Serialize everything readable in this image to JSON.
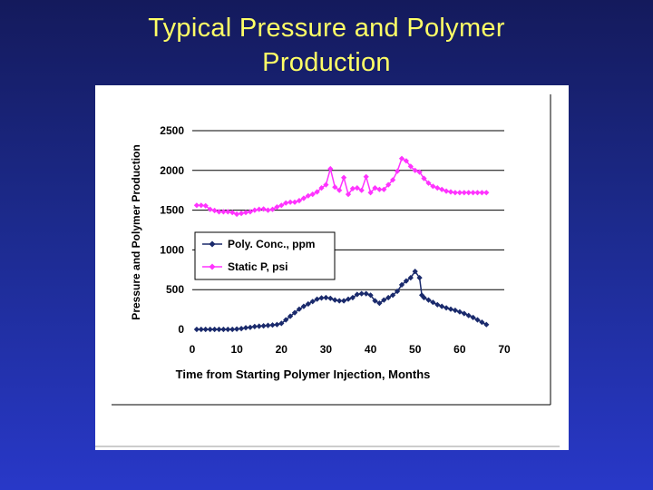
{
  "slide": {
    "title_line1": "Typical Pressure and Polymer",
    "title_line2": "Production"
  },
  "colors": {
    "title": "#ffff66",
    "poly_series": "#1a2a6c",
    "static_series": "#ff33ff",
    "gridline": "#000000"
  },
  "chart_data": {
    "type": "line",
    "title": "",
    "xlabel": "Time from Starting Polymer Injection, Months",
    "ylabel": "Pressure and Polymer Production",
    "xlim": [
      0,
      70
    ],
    "ylim": [
      0,
      2500
    ],
    "xticks": [
      0,
      10,
      20,
      30,
      40,
      50,
      60,
      70
    ],
    "yticks": [
      0,
      500,
      1000,
      1500,
      2000,
      2500
    ],
    "grid": "horizontal",
    "legend_position": "left",
    "series": [
      {
        "name": "Poly. Conc., ppm",
        "color": "#1a2a6c",
        "marker": "diamond",
        "points": [
          [
            1,
            0
          ],
          [
            2,
            0
          ],
          [
            3,
            0
          ],
          [
            4,
            0
          ],
          [
            5,
            0
          ],
          [
            6,
            0
          ],
          [
            7,
            0
          ],
          [
            8,
            0
          ],
          [
            9,
            0
          ],
          [
            10,
            5
          ],
          [
            11,
            10
          ],
          [
            12,
            20
          ],
          [
            13,
            25
          ],
          [
            14,
            35
          ],
          [
            15,
            40
          ],
          [
            16,
            45
          ],
          [
            17,
            50
          ],
          [
            18,
            55
          ],
          [
            19,
            60
          ],
          [
            20,
            75
          ],
          [
            21,
            120
          ],
          [
            22,
            165
          ],
          [
            23,
            210
          ],
          [
            24,
            255
          ],
          [
            25,
            290
          ],
          [
            26,
            320
          ],
          [
            27,
            350
          ],
          [
            28,
            380
          ],
          [
            29,
            395
          ],
          [
            30,
            400
          ],
          [
            31,
            390
          ],
          [
            32,
            370
          ],
          [
            33,
            360
          ],
          [
            34,
            360
          ],
          [
            35,
            380
          ],
          [
            36,
            400
          ],
          [
            37,
            440
          ],
          [
            38,
            450
          ],
          [
            39,
            450
          ],
          [
            40,
            430
          ],
          [
            41,
            360
          ],
          [
            42,
            330
          ],
          [
            43,
            370
          ],
          [
            44,
            400
          ],
          [
            45,
            430
          ],
          [
            46,
            480
          ],
          [
            47,
            560
          ],
          [
            48,
            610
          ],
          [
            49,
            650
          ],
          [
            50,
            730
          ],
          [
            51,
            650
          ],
          [
            51.5,
            430
          ],
          [
            52,
            400
          ],
          [
            53,
            370
          ],
          [
            54,
            340
          ],
          [
            55,
            310
          ],
          [
            56,
            290
          ],
          [
            57,
            270
          ],
          [
            58,
            255
          ],
          [
            59,
            240
          ],
          [
            60,
            220
          ],
          [
            61,
            200
          ],
          [
            62,
            175
          ],
          [
            63,
            150
          ],
          [
            64,
            120
          ],
          [
            65,
            90
          ],
          [
            66,
            60
          ]
        ]
      },
      {
        "name": "Static P, psi",
        "color": "#ff33ff",
        "marker": "diamond",
        "points": [
          [
            1,
            1560
          ],
          [
            2,
            1560
          ],
          [
            3,
            1555
          ],
          [
            4,
            1510
          ],
          [
            5,
            1495
          ],
          [
            6,
            1480
          ],
          [
            7,
            1480
          ],
          [
            8,
            1480
          ],
          [
            9,
            1470
          ],
          [
            10,
            1450
          ],
          [
            11,
            1460
          ],
          [
            12,
            1470
          ],
          [
            13,
            1480
          ],
          [
            14,
            1500
          ],
          [
            15,
            1510
          ],
          [
            16,
            1515
          ],
          [
            17,
            1500
          ],
          [
            18,
            1510
          ],
          [
            19,
            1540
          ],
          [
            20,
            1560
          ],
          [
            21,
            1590
          ],
          [
            22,
            1600
          ],
          [
            23,
            1600
          ],
          [
            24,
            1620
          ],
          [
            25,
            1650
          ],
          [
            26,
            1680
          ],
          [
            27,
            1700
          ],
          [
            28,
            1730
          ],
          [
            29,
            1780
          ],
          [
            30,
            1820
          ],
          [
            31,
            2020
          ],
          [
            32,
            1790
          ],
          [
            33,
            1750
          ],
          [
            34,
            1910
          ],
          [
            35,
            1700
          ],
          [
            36,
            1770
          ],
          [
            37,
            1780
          ],
          [
            38,
            1750
          ],
          [
            39,
            1920
          ],
          [
            40,
            1720
          ],
          [
            41,
            1780
          ],
          [
            42,
            1760
          ],
          [
            43,
            1760
          ],
          [
            44,
            1820
          ],
          [
            45,
            1880
          ],
          [
            46,
            1990
          ],
          [
            47,
            2150
          ],
          [
            48,
            2120
          ],
          [
            49,
            2050
          ],
          [
            50,
            2000
          ],
          [
            51,
            1980
          ],
          [
            52,
            1900
          ],
          [
            53,
            1840
          ],
          [
            54,
            1800
          ],
          [
            55,
            1780
          ],
          [
            56,
            1760
          ],
          [
            57,
            1740
          ],
          [
            58,
            1730
          ],
          [
            59,
            1720
          ],
          [
            60,
            1720
          ],
          [
            61,
            1720
          ],
          [
            62,
            1720
          ],
          [
            63,
            1720
          ],
          [
            64,
            1720
          ],
          [
            65,
            1720
          ],
          [
            66,
            1720
          ]
        ]
      }
    ]
  }
}
